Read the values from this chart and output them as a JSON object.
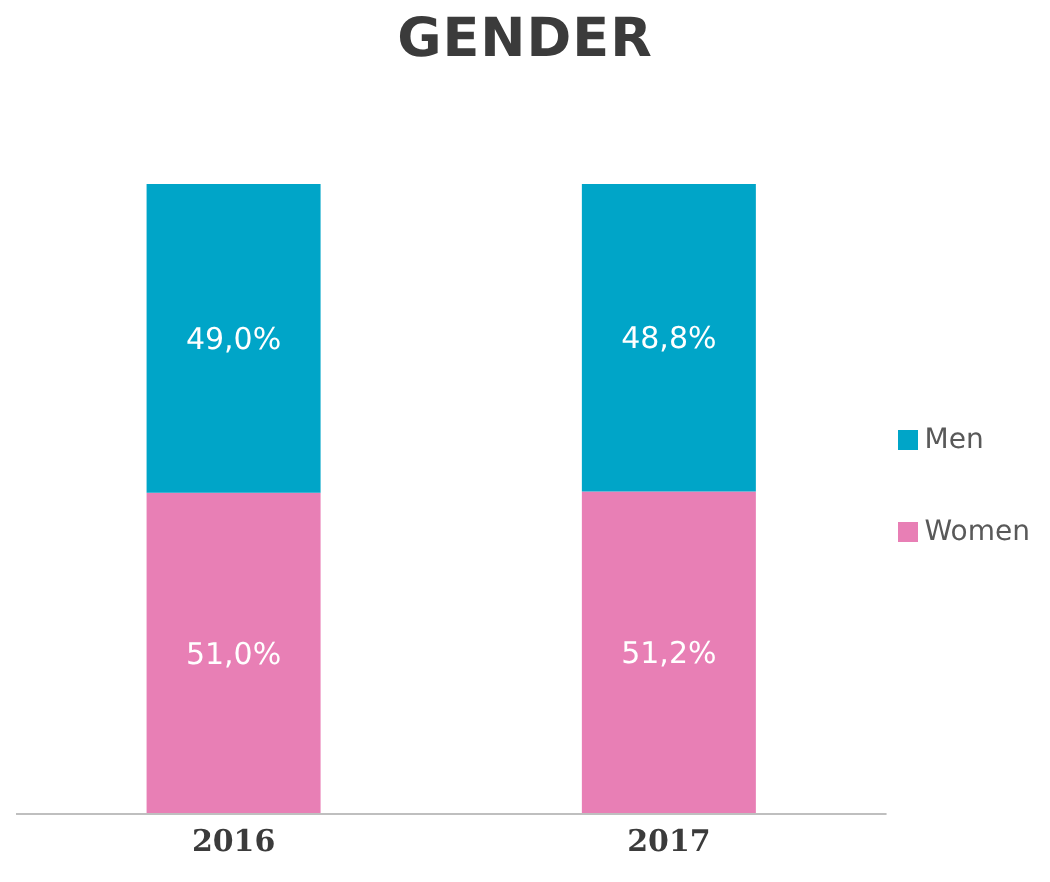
{
  "chart_data": {
    "type": "bar",
    "title": "GENDER",
    "categories": [
      "2016",
      "2017"
    ],
    "stacked": true,
    "ylim": [
      0,
      100
    ],
    "legend": "right",
    "grid": false,
    "series": [
      {
        "name": "Women",
        "color": "#e87fb5",
        "values": [
          51.0,
          51.2
        ],
        "value_labels": [
          "51,0%",
          "51,2%"
        ]
      },
      {
        "name": "Men",
        "color": "#00a5c8",
        "values": [
          49.0,
          48.8
        ],
        "value_labels": [
          "49,0%",
          "48,8%"
        ]
      }
    ]
  }
}
